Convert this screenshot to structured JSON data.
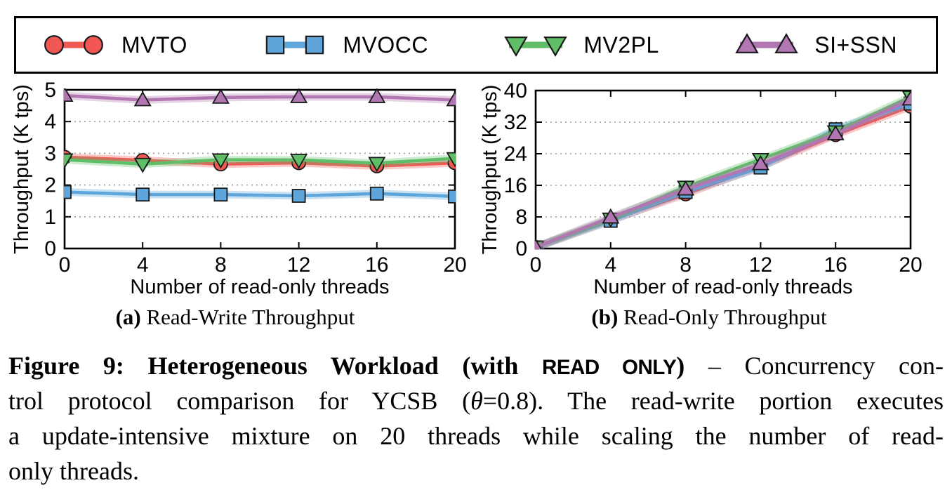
{
  "figure": {
    "legend": {
      "items": [
        {
          "label": "MVTO",
          "marker": "circle",
          "color": "#F15854"
        },
        {
          "label": "MVOCC",
          "marker": "square",
          "color": "#5DA5DA"
        },
        {
          "label": "MV2PL",
          "marker": "triangle-down",
          "color": "#60BD68"
        },
        {
          "label": "SI+SSN",
          "marker": "triangle-up",
          "color": "#B276B2"
        }
      ]
    },
    "subcaptions": {
      "a_label": "(a)",
      "a_text": " Read-Write Throughput",
      "b_label": "(b)",
      "b_text": " Read-Only Throughput"
    },
    "caption": {
      "line1_bold": "Figure 9: Heterogeneous Workload (with ",
      "line1_code": "READ ONLY",
      "line1_bold2": ")",
      "line1_rest": " – Concurrency con-",
      "line2_pre": "trol protocol comparison for YCSB (",
      "line2_theta": "θ",
      "line2_post": "=0.8). The read-write portion executes",
      "line3": "a update-intensive mixture on 20 threads while scaling the number of read-",
      "line4": "only threads."
    }
  },
  "chart_data": [
    {
      "type": "line",
      "title": "(a) Read-Write Throughput",
      "xlabel": "Number of read-only threads",
      "ylabel": "Throughput (K tps)",
      "xlim": [
        0,
        20
      ],
      "ylim": [
        0,
        5
      ],
      "xticks": [
        0,
        4,
        8,
        12,
        16,
        20
      ],
      "yticks": [
        0,
        1,
        2,
        3,
        4,
        5
      ],
      "grid": "horizontal-dotted",
      "legend_position": "top-outside-shared",
      "x": [
        0,
        4,
        8,
        12,
        16,
        20
      ],
      "series": [
        {
          "name": "MVTO",
          "color": "#F15854",
          "marker": "circle",
          "values": [
            2.88,
            2.78,
            2.66,
            2.7,
            2.6,
            2.7
          ]
        },
        {
          "name": "MVOCC",
          "color": "#5DA5DA",
          "marker": "square",
          "values": [
            1.78,
            1.7,
            1.7,
            1.66,
            1.73,
            1.64
          ]
        },
        {
          "name": "MV2PL",
          "color": "#60BD68",
          "marker": "triangle-down",
          "values": [
            2.8,
            2.66,
            2.8,
            2.79,
            2.69,
            2.84
          ]
        },
        {
          "name": "SI+SSN",
          "color": "#B276B2",
          "marker": "triangle-up",
          "values": [
            4.82,
            4.68,
            4.76,
            4.78,
            4.78,
            4.68
          ]
        }
      ]
    },
    {
      "type": "line",
      "title": "(b) Read-Only Throughput",
      "xlabel": "Number of read-only threads",
      "ylabel": "Throughput (K tps)",
      "xlim": [
        0,
        20
      ],
      "ylim": [
        0,
        40
      ],
      "xticks": [
        0,
        4,
        8,
        12,
        16,
        20
      ],
      "yticks": [
        0,
        8,
        16,
        24,
        32,
        40
      ],
      "grid": "horizontal-dotted",
      "legend_position": "top-outside-shared",
      "x": [
        0,
        4,
        8,
        12,
        16,
        20
      ],
      "series": [
        {
          "name": "MVTO",
          "color": "#F15854",
          "marker": "circle",
          "values": [
            0.3,
            7.2,
            13.8,
            20.8,
            28.8,
            36.0
          ]
        },
        {
          "name": "MVOCC",
          "color": "#5DA5DA",
          "marker": "square",
          "values": [
            0.3,
            7.0,
            14.3,
            20.5,
            30.2,
            36.7
          ]
        },
        {
          "name": "MV2PL",
          "color": "#60BD68",
          "marker": "triangle-down",
          "values": [
            0.4,
            7.5,
            15.6,
            22.6,
            29.6,
            38.4
          ]
        },
        {
          "name": "SI+SSN",
          "color": "#B276B2",
          "marker": "triangle-up",
          "values": [
            0.3,
            7.9,
            15.0,
            21.4,
            29.0,
            37.8
          ]
        }
      ]
    }
  ]
}
